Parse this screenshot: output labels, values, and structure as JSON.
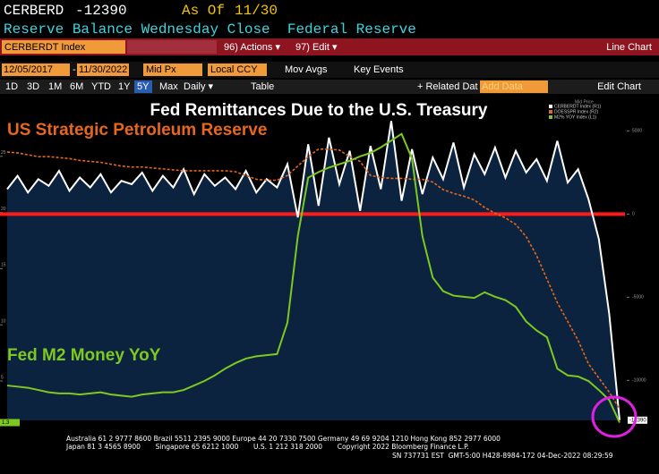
{
  "header": {
    "ticker": "CERBERD",
    "value": "-12390",
    "as_of": "As Of",
    "date": "11/30",
    "description": "Reserve Balance Wednesday Close  Federal Reserve"
  },
  "toolbar": {
    "security": "CERBERDT Index",
    "actions": "96) Actions ▾",
    "edit": "97) Edit ▾",
    "chart_type": "Line Chart"
  },
  "controls": {
    "start_date": "12/05/2017",
    "date_separator": "-",
    "end_date": "11/30/2022",
    "price": "Mid Px",
    "currency": "Local CCY",
    "mov_avgs": "Mov Avgs",
    "key_events": "Key Events"
  },
  "periods": [
    "1D",
    "3D",
    "1M",
    "6M",
    "YTD",
    "1Y",
    "5Y",
    "Max",
    "Daily ▾"
  ],
  "tools": {
    "table": "Table",
    "related": "+ Related Dat",
    "add_data": "Add Data",
    "edit_chart": "Edit Chart"
  },
  "footer": [
    "Australia 61 2 9777 8600 Brazil 5511 2395 9000 Europe 44 20 7330 7500 Germany 49 69 9204 1210 Hong Kong 852 2977 6000",
    "Japan 81 3 4565 8900       Singapore 65 6212 1000       U.S. 1 212 318 2000       Copyright 2022 Bloomberg Finance L.P.",
    "SN 737731 EST  GMT-5:00 H428-8984-172 04-Dec-2022 08:29:59"
  ],
  "chart_data": {
    "type": "line",
    "title": "Fed Remittances Due to the U.S. Treasury",
    "legend_title": "Mid Price",
    "ylim": [
      1.5,
      30
    ],
    "yticks": [
      5,
      10,
      15,
      20,
      25
    ],
    "y2lim": [
      -12400,
      6850
    ],
    "y2ticks": [
      5000,
      0,
      -5000,
      -10000
    ],
    "y3lim": [
      380,
      720
    ],
    "ref_line": {
      "axis": "y2",
      "value": 0,
      "color": "#ff1a1a"
    },
    "series": [
      {
        "name": "CERBERDT Index (R1)",
        "annotation": "Fed Remittances Due to the U.S. Treasury",
        "color": "#ffffff",
        "area_color": "#0c2340",
        "axis": "y2",
        "values": [
          1500,
          2300,
          1300,
          2100,
          1700,
          2600,
          1400,
          2200,
          1600,
          2400,
          1300,
          2000,
          1800,
          2500,
          1400,
          2300,
          1600,
          2700,
          1200,
          2400,
          1700,
          2200,
          1500,
          2600,
          1300,
          2100,
          1600,
          3000,
          -200,
          4200,
          500,
          4600,
          1800,
          3800,
          200,
          4100,
          1500,
          5600,
          800,
          3900,
          1200,
          3400,
          2100,
          4300,
          1600,
          3600,
          2400,
          4000,
          2200,
          3800,
          2500,
          3300,
          2000,
          4400,
          1900,
          2700,
          900,
          -1500,
          -6000,
          -12390
        ]
      },
      {
        "name": "DOESSPR Index (R2)",
        "annotation": "US Strategic Petroleum Reserve",
        "color": "#e8671a",
        "dashed": true,
        "axis": "y3",
        "values": [
          665,
          664,
          662,
          660,
          660,
          659,
          658,
          656,
          655,
          654,
          652,
          650,
          649,
          649,
          648,
          647,
          646,
          645,
          645,
          645,
          645,
          645,
          644,
          640,
          636,
          635,
          635,
          640,
          650,
          660,
          668,
          668,
          667,
          660,
          655,
          640,
          638,
          637,
          637,
          636,
          636,
          633,
          625,
          621,
          618,
          614,
          606,
          600,
          595,
          588,
          575,
          555,
          530,
          505,
          485,
          465,
          440,
          425,
          410,
          392
        ]
      },
      {
        "name": "M2% YOY Index (L1)",
        "annotation": "Fed M2 Money YoY",
        "color": "#7ec820",
        "axis": "y",
        "values": [
          4.6,
          4.5,
          4.4,
          4.2,
          4.0,
          3.9,
          3.9,
          3.8,
          3.9,
          4.0,
          3.8,
          3.7,
          3.6,
          3.8,
          3.9,
          4.0,
          4.0,
          4.2,
          4.6,
          5.0,
          5.5,
          6.1,
          6.6,
          7.0,
          7.2,
          7.3,
          7.4,
          10.2,
          17.9,
          23.1,
          23.6,
          24.0,
          24.3,
          24.6,
          25.0,
          25.3,
          25.8,
          26.4,
          27.0,
          24.8,
          17.9,
          14.2,
          13.0,
          12.6,
          12.5,
          12.4,
          12.9,
          12.5,
          12.2,
          11.6,
          10.3,
          9.5,
          8.9,
          6.1,
          5.5,
          5.4,
          5.0,
          4.2,
          3.3,
          1.3
        ]
      }
    ]
  }
}
